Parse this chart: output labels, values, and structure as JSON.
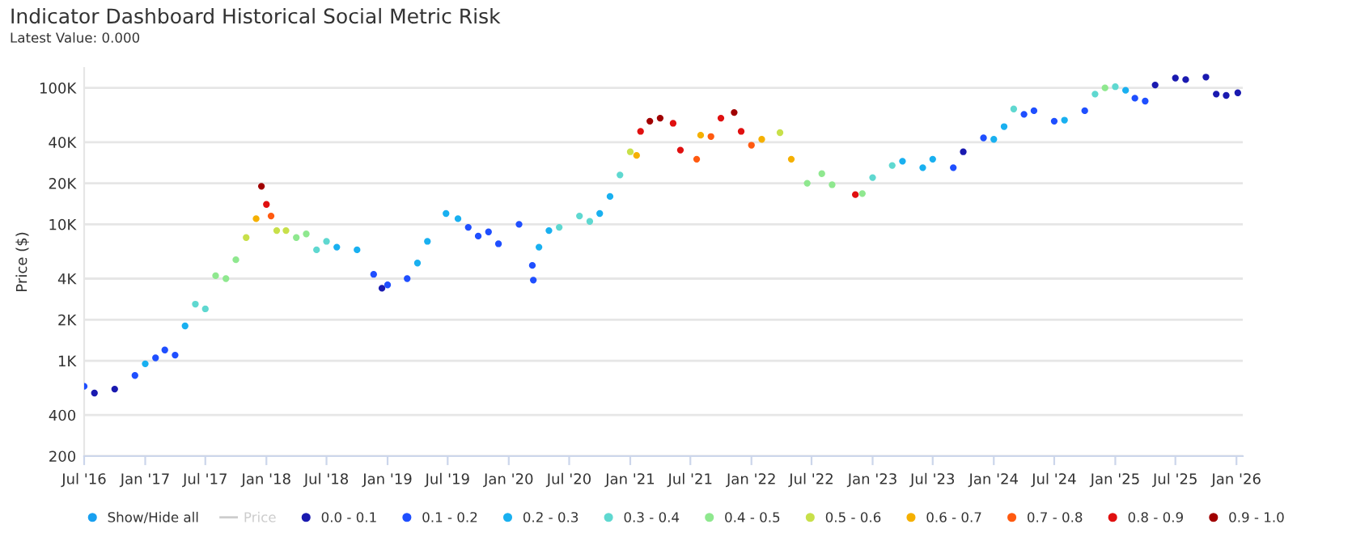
{
  "chart_data": {
    "type": "scatter",
    "title": "Indicator Dashboard Historical Social Metric Risk",
    "subtitle": "Latest Value: 0.000",
    "ylabel": "Price ($)",
    "log": "y",
    "grid": "y",
    "legend": "bottom",
    "marker": "circle",
    "annotations": [
      "Show/Hide all"
    ],
    "xlim": [
      "2016-07-01",
      "2026-01-20"
    ],
    "xticks": [
      {
        "value": "2016-07-01",
        "label": "Jul '16"
      },
      {
        "value": "2017-01-01",
        "label": "Jan '17"
      },
      {
        "value": "2017-07-01",
        "label": "Jul '17"
      },
      {
        "value": "2018-01-01",
        "label": "Jan '18"
      },
      {
        "value": "2018-07-01",
        "label": "Jul '18"
      },
      {
        "value": "2019-01-01",
        "label": "Jan '19"
      },
      {
        "value": "2019-07-01",
        "label": "Jul '19"
      },
      {
        "value": "2020-01-01",
        "label": "Jan '20"
      },
      {
        "value": "2020-07-01",
        "label": "Jul '20"
      },
      {
        "value": "2021-01-01",
        "label": "Jan '21"
      },
      {
        "value": "2021-07-01",
        "label": "Jul '21"
      },
      {
        "value": "2022-01-01",
        "label": "Jan '22"
      },
      {
        "value": "2022-07-01",
        "label": "Jul '22"
      },
      {
        "value": "2023-01-01",
        "label": "Jan '23"
      },
      {
        "value": "2023-07-01",
        "label": "Jul '23"
      },
      {
        "value": "2024-01-01",
        "label": "Jan '24"
      },
      {
        "value": "2024-07-01",
        "label": "Jul '24"
      },
      {
        "value": "2025-01-01",
        "label": "Jan '25"
      },
      {
        "value": "2025-07-01",
        "label": "Jul '25"
      },
      {
        "value": "2026-01-01",
        "label": "Jan '26"
      }
    ],
    "ylim": [
      200,
      140000
    ],
    "yticks": [
      200,
      400,
      {
        "value": 1000,
        "label": "1K"
      },
      {
        "value": 2000,
        "label": "2K"
      },
      {
        "value": 4000,
        "label": "4K"
      },
      {
        "value": 10000,
        "label": "10K"
      },
      {
        "value": 20000,
        "label": "20K"
      },
      {
        "value": 40000,
        "label": "40K"
      },
      {
        "value": 100000,
        "label": "100K"
      }
    ],
    "series": [
      {
        "name": "Price",
        "type": "line",
        "color": "#cccccc"
      },
      {
        "name": "0.0 - 0.1",
        "color": "#1a1ab0",
        "x": [
          "2016-08",
          "2016-10",
          "2018-12-15",
          "2023-10",
          "2025-05",
          "2025-07",
          "2025-08",
          "2025-10",
          "2025-11",
          "2025-12",
          "2026-01-05"
        ],
        "values": [
          580,
          620,
          3400,
          34000,
          105000,
          118000,
          115000,
          120000,
          90000,
          88000,
          92000
        ]
      },
      {
        "name": "0.1 - 0.2",
        "color": "#1f4fff",
        "x": [
          "2016-07",
          "2016-12",
          "2017-02",
          "2017-03",
          "2017-04",
          "2018-11-20",
          "2019-01",
          "2019-03",
          "2019-09",
          "2019-10",
          "2019-11",
          "2019-12",
          "2020-02",
          "2020-03-12",
          "2020-03-15",
          "2023-09",
          "2023-12",
          "2024-04",
          "2024-05",
          "2024-07",
          "2024-10",
          "2025-03",
          "2025-04"
        ],
        "values": [
          650,
          780,
          1050,
          1200,
          1100,
          4300,
          3600,
          4000,
          9500,
          8200,
          8800,
          7200,
          10000,
          5000,
          3900,
          26000,
          43000,
          64000,
          68000,
          57000,
          68000,
          84000,
          80000
        ]
      },
      {
        "name": "0.2 - 0.3",
        "color": "#19b0f0",
        "x": [
          "2017-01",
          "2017-05",
          "2018-08",
          "2018-10",
          "2019-04",
          "2019-05",
          "2019-06-26",
          "2019-08",
          "2020-04",
          "2020-05",
          "2020-10",
          "2020-11",
          "2023-04",
          "2023-06",
          "2023-07",
          "2024-01",
          "2024-02",
          "2024-08",
          "2025-02"
        ],
        "values": [
          950,
          1800,
          6800,
          6500,
          5200,
          7500,
          12000,
          11000,
          6800,
          9000,
          12000,
          16000,
          29000,
          26000,
          30000,
          42000,
          52000,
          58000,
          96000
        ]
      },
      {
        "name": "0.3 - 0.4",
        "color": "#5fd8d0",
        "x": [
          "2017-06",
          "2017-07",
          "2018-06",
          "2018-07",
          "2020-06",
          "2020-08",
          "2020-09",
          "2020-12",
          "2023-01",
          "2023-03",
          "2024-03",
          "2024-11",
          "2025-01"
        ],
        "values": [
          2600,
          2400,
          6500,
          7500,
          9500,
          11500,
          10500,
          23000,
          22000,
          27000,
          70000,
          90000,
          102000
        ]
      },
      {
        "name": "0.4 - 0.5",
        "color": "#8fe88f",
        "x": [
          "2017-08",
          "2017-09",
          "2017-10",
          "2018-04",
          "2018-05",
          "2022-06-18",
          "2022-08",
          "2022-09",
          "2022-12",
          "2024-12"
        ],
        "values": [
          4200,
          4000,
          5500,
          8000,
          8500,
          20000,
          23500,
          19500,
          16800,
          100000
        ]
      },
      {
        "name": "0.5 - 0.6",
        "color": "#c8e04a",
        "x": [
          "2017-11",
          "2018-02",
          "2018-03",
          "2021-01",
          "2022-03-28"
        ],
        "values": [
          8000,
          9000,
          9000,
          34000,
          47000
        ]
      },
      {
        "name": "0.6 - 0.7",
        "color": "#f5b000",
        "x": [
          "2017-12-01",
          "2021-01-20",
          "2021-08",
          "2022-02",
          "2022-05"
        ],
        "values": [
          11000,
          32000,
          45000,
          42000,
          30000
        ]
      },
      {
        "name": "0.7 - 0.8",
        "color": "#ff5a10",
        "x": [
          "2018-01-15",
          "2021-07-20",
          "2021-09",
          "2022-01"
        ],
        "values": [
          11500,
          30000,
          44000,
          38000
        ]
      },
      {
        "name": "0.8 - 0.9",
        "color": "#e01010",
        "x": [
          "2018-01-01",
          "2021-02",
          "2021-05-10",
          "2021-06",
          "2021-10",
          "2021-12",
          "2022-11-10"
        ],
        "values": [
          14000,
          48000,
          55000,
          35000,
          60000,
          48000,
          16500
        ]
      },
      {
        "name": "0.9 - 1.0",
        "color": "#a00000",
        "x": [
          "2017-12-17",
          "2021-03",
          "2021-04",
          "2021-11-10"
        ],
        "values": [
          19000,
          57000,
          60000,
          66000
        ]
      }
    ]
  }
}
